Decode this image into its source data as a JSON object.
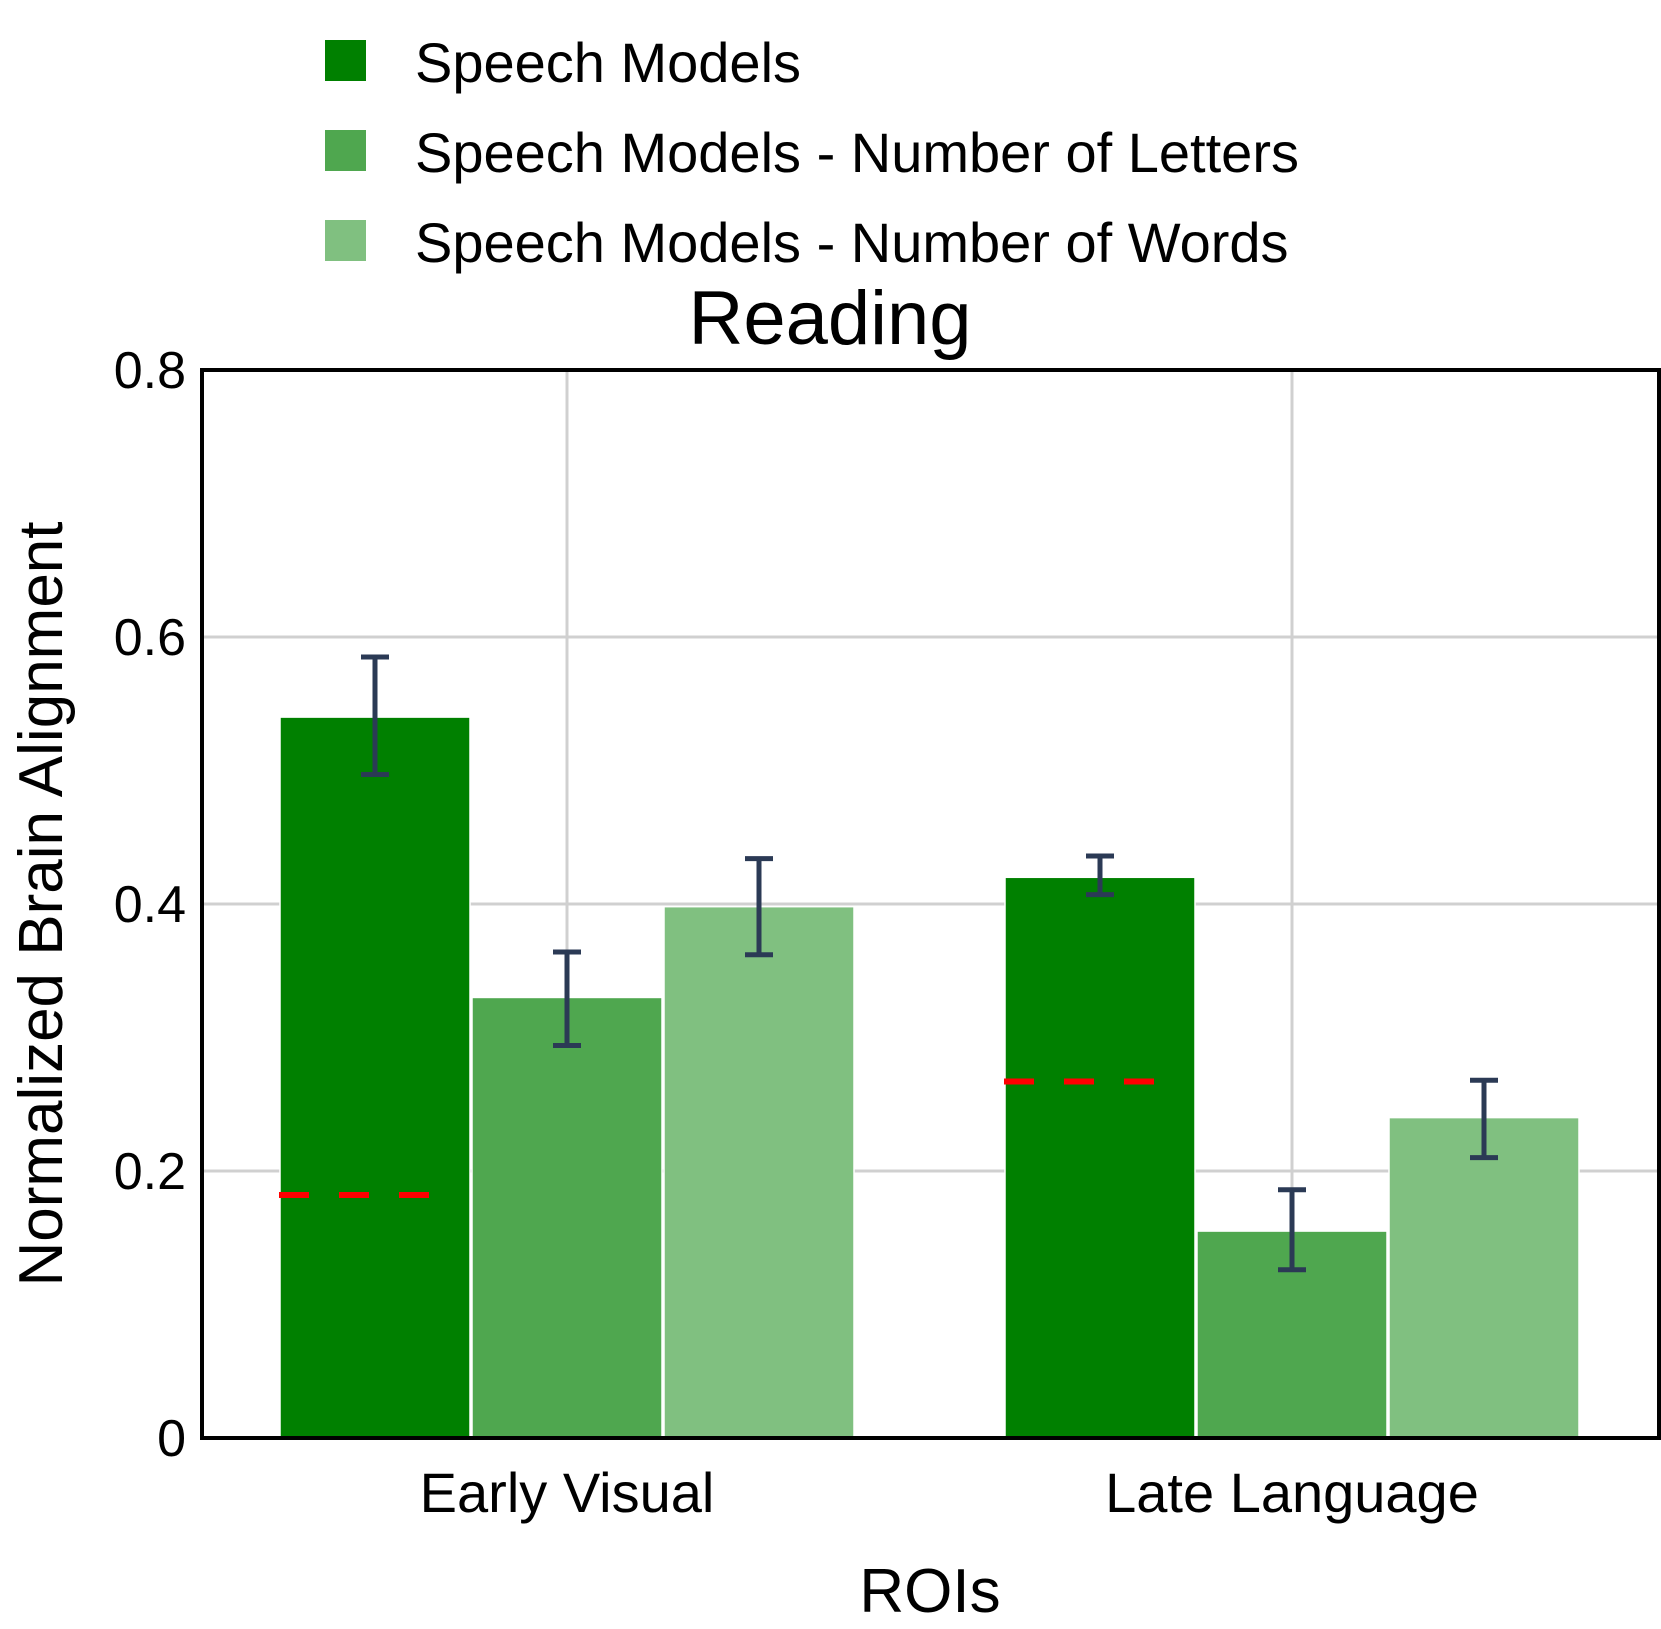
{
  "chart_data": {
    "type": "bar",
    "title": "Reading",
    "xlabel": "ROIs",
    "ylabel": "Normalized Brain Alignment",
    "categories": [
      "Early Visual",
      "Late Language"
    ],
    "ylim": [
      0,
      0.8
    ],
    "yticks": [
      0,
      0.2,
      0.4,
      0.6,
      0.8
    ],
    "ytick_labels": [
      "0",
      "0.2",
      "0.4",
      "0.6",
      "0.8"
    ],
    "grid": true,
    "legend_position": "top",
    "series": [
      {
        "name": "Speech Models",
        "color": "#008000",
        "values": [
          0.54,
          0.42
        ],
        "error_low": [
          0.497,
          0.407
        ],
        "error_high": [
          0.585,
          0.436
        ]
      },
      {
        "name": "Speech Models - Number of Letters",
        "color": "#4fa74f",
        "values": [
          0.33,
          0.155
        ],
        "error_low": [
          0.294,
          0.126
        ],
        "error_high": [
          0.364,
          0.186
        ]
      },
      {
        "name": "Speech Models - Number of Words",
        "color": "#80c080",
        "values": [
          0.398,
          0.24
        ],
        "error_low": [
          0.362,
          0.21
        ],
        "error_high": [
          0.434,
          0.268
        ]
      }
    ],
    "baseline_lines": {
      "color": "#ff0000",
      "style": "dashed",
      "values": [
        0.182,
        0.267
      ]
    },
    "errorbar_color": "#2b3a55"
  }
}
